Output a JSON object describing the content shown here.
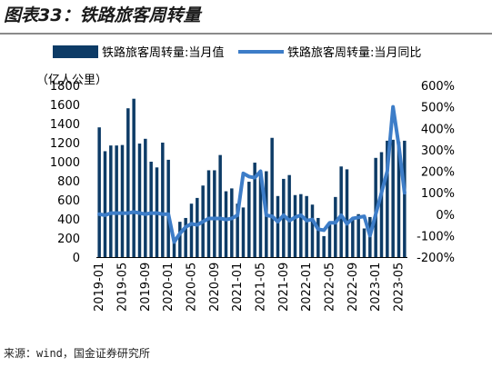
{
  "header": {
    "title": "图表33：铁路旅客周转量"
  },
  "footer": {
    "source": "来源：wind，国金证券研究所"
  },
  "chart_data": {
    "type": "bar+line",
    "left_axis_unit": "（亿人公里）",
    "legend": [
      "铁路旅客周转量:当月值",
      "铁路旅客周转量:当月同比"
    ],
    "legend_placement": "top",
    "colors": {
      "bar": "#0d3b66",
      "line": "#3d7dc8"
    },
    "ylim_left": [
      0,
      1800
    ],
    "yticks_left": [
      "0",
      "200",
      "400",
      "600",
      "800",
      "1000",
      "1200",
      "1400",
      "1600",
      "1800"
    ],
    "ylim_right": [
      -200,
      600
    ],
    "yticks_right": [
      "-200%",
      "-100%",
      "0%",
      "100%",
      "200%",
      "300%",
      "400%",
      "500%",
      "600%"
    ],
    "xtick_labels": [
      "2019-01",
      "2019-05",
      "2019-09",
      "2020-01",
      "2020-05",
      "2020-09",
      "2021-01",
      "2021-05",
      "2021-09",
      "2022-01",
      "2022-05",
      "2022-09",
      "2023-01",
      "2023-05"
    ],
    "categories": [
      "2019-01",
      "2019-02",
      "2019-03",
      "2019-04",
      "2019-05",
      "2019-06",
      "2019-07",
      "2019-08",
      "2019-09",
      "2019-10",
      "2019-11",
      "2019-12",
      "2020-01",
      "2020-02",
      "2020-03",
      "2020-04",
      "2020-05",
      "2020-06",
      "2020-07",
      "2020-08",
      "2020-09",
      "2020-10",
      "2020-11",
      "2020-12",
      "2021-01",
      "2021-02",
      "2021-03",
      "2021-04",
      "2021-05",
      "2021-06",
      "2021-07",
      "2021-08",
      "2021-09",
      "2021-10",
      "2021-11",
      "2021-12",
      "2022-01",
      "2022-02",
      "2022-03",
      "2022-04",
      "2022-05",
      "2022-06",
      "2022-07",
      "2022-08",
      "2022-09",
      "2022-10",
      "2022-11",
      "2022-12",
      "2023-01",
      "2023-02",
      "2023-03",
      "2023-04",
      "2023-05",
      "2023-06"
    ],
    "series": [
      {
        "name": "铁路旅客周转量:当月值",
        "type": "bar",
        "values": [
          1360,
          1110,
          1170,
          1170,
          1175,
          1560,
          1660,
          1190,
          1240,
          1000,
          940,
          1200,
          1020,
          200,
          370,
          410,
          560,
          620,
          750,
          910,
          910,
          1070,
          690,
          720,
          560,
          520,
          790,
          990,
          860,
          900,
          1250,
          640,
          820,
          860,
          650,
          660,
          640,
          550,
          410,
          220,
          340,
          630,
          950,
          920,
          400,
          450,
          300,
          420,
          1040,
          1100,
          1220,
          1230,
          1210,
          1220
        ]
      },
      {
        "name": "铁路旅客周转量:当月同比",
        "type": "line",
        "values": [
          0,
          -5,
          5,
          5,
          5,
          5,
          10,
          5,
          0,
          5,
          5,
          0,
          0,
          -130,
          -90,
          -60,
          -45,
          -50,
          -35,
          -20,
          -20,
          -20,
          -25,
          -20,
          -5,
          190,
          175,
          170,
          200,
          -5,
          -10,
          -35,
          -5,
          -30,
          -15,
          -5,
          -30,
          -25,
          -70,
          -75,
          -40,
          -40,
          -5,
          -45,
          -20,
          -15,
          -10,
          -100,
          0,
          100,
          200,
          500,
          320,
          100
        ]
      }
    ]
  }
}
